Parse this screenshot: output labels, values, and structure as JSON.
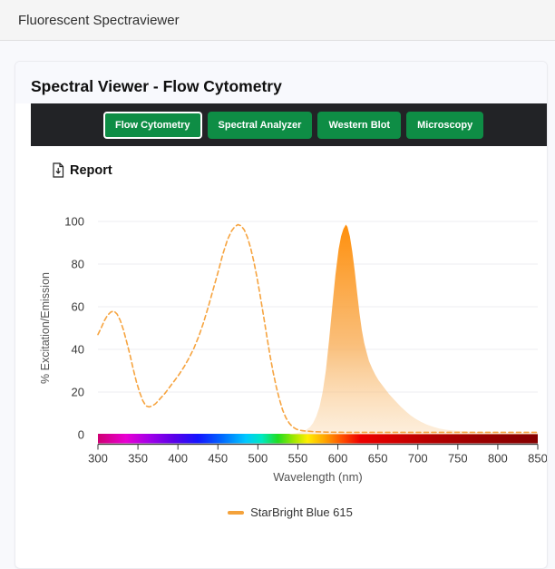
{
  "header": {
    "title": "Fluorescent Spectraviewer"
  },
  "card": {
    "title": "Spectral Viewer - Flow Cytometry"
  },
  "toolbar": {
    "bar_color": "#222326",
    "button_color": "#0e8d45",
    "buttons": [
      {
        "label": "Flow Cytometry",
        "active": true
      },
      {
        "label": "Spectral Analyzer",
        "active": false
      },
      {
        "label": "Western Blot",
        "active": false
      },
      {
        "label": "Microscopy",
        "active": false
      }
    ]
  },
  "report": {
    "label": "Report",
    "icon": "file-download-icon"
  },
  "chart_data": {
    "type": "area",
    "title": "",
    "xlabel": "Wavelength (nm)",
    "ylabel": "% Excitation/Emission",
    "xlim": [
      300,
      850
    ],
    "ylim": [
      0,
      100
    ],
    "x_ticks": [
      300,
      350,
      400,
      450,
      500,
      550,
      600,
      650,
      700,
      750,
      800,
      850
    ],
    "y_ticks": [
      0,
      20,
      40,
      60,
      80,
      100
    ],
    "grid": "horizontal",
    "legend_position": "bottom-center",
    "legend": [
      {
        "label": "StarBright Blue 615",
        "color": "#f4a23b"
      }
    ],
    "colors": {
      "excitation_line": "#f6a440",
      "grid": "#ededf0",
      "axis": "#3a3a3a",
      "tick_text": "#3a3a3a",
      "axis_title_text": "#555555"
    },
    "emission_gradient": [
      {
        "offset": 0,
        "color": "#ff8a00",
        "opacity": 0.97
      },
      {
        "offset": 0.55,
        "color": "#f8ae58",
        "opacity": 0.8
      },
      {
        "offset": 1,
        "color": "#fbe0bd",
        "opacity": 0.42
      }
    ],
    "spectrum_bar": {
      "description": "visible-spectrum color strip along the 0% baseline, 300-850 nm",
      "stops": [
        {
          "nm": 300,
          "color": "#cf0072"
        },
        {
          "nm": 335,
          "color": "#e800d2"
        },
        {
          "nm": 365,
          "color": "#a000e8"
        },
        {
          "nm": 395,
          "color": "#5a00e8"
        },
        {
          "nm": 425,
          "color": "#1414ff"
        },
        {
          "nm": 455,
          "color": "#0068ff"
        },
        {
          "nm": 485,
          "color": "#00c8ff"
        },
        {
          "nm": 505,
          "color": "#00e8c0"
        },
        {
          "nm": 525,
          "color": "#22dd22"
        },
        {
          "nm": 545,
          "color": "#a0e800"
        },
        {
          "nm": 562,
          "color": "#ffee00"
        },
        {
          "nm": 585,
          "color": "#ffa000"
        },
        {
          "nm": 605,
          "color": "#ff5000"
        },
        {
          "nm": 628,
          "color": "#ee0000"
        },
        {
          "nm": 670,
          "color": "#d40000"
        },
        {
          "nm": 720,
          "color": "#b40000"
        },
        {
          "nm": 780,
          "color": "#9a0000"
        },
        {
          "nm": 850,
          "color": "#860000"
        }
      ]
    },
    "series": [
      {
        "name": "StarBright Blue 615 excitation",
        "type": "line",
        "style": "dashed",
        "points": [
          [
            300,
            47
          ],
          [
            304,
            50
          ],
          [
            308,
            53.5
          ],
          [
            312,
            56
          ],
          [
            316,
            57.5
          ],
          [
            320,
            58
          ],
          [
            324,
            56.5
          ],
          [
            328,
            53.5
          ],
          [
            332,
            49
          ],
          [
            336,
            43.5
          ],
          [
            340,
            37.5
          ],
          [
            344,
            31
          ],
          [
            348,
            25
          ],
          [
            352,
            20
          ],
          [
            356,
            16
          ],
          [
            360,
            13.5
          ],
          [
            364,
            13
          ],
          [
            368,
            13.5
          ],
          [
            372,
            14.5
          ],
          [
            378,
            17
          ],
          [
            384,
            19.5
          ],
          [
            390,
            22.5
          ],
          [
            396,
            25.5
          ],
          [
            402,
            28.5
          ],
          [
            408,
            32
          ],
          [
            414,
            36
          ],
          [
            420,
            40.5
          ],
          [
            426,
            46
          ],
          [
            432,
            52.5
          ],
          [
            438,
            60
          ],
          [
            444,
            68
          ],
          [
            450,
            76
          ],
          [
            456,
            84.5
          ],
          [
            462,
            91.5
          ],
          [
            467,
            95.5
          ],
          [
            471,
            97.5
          ],
          [
            475,
            98.5
          ],
          [
            479,
            98
          ],
          [
            483,
            96
          ],
          [
            487,
            92.5
          ],
          [
            491,
            87.5
          ],
          [
            495,
            81
          ],
          [
            499,
            73.5
          ],
          [
            503,
            65
          ],
          [
            507,
            56
          ],
          [
            511,
            46.5
          ],
          [
            515,
            37.5
          ],
          [
            519,
            29.5
          ],
          [
            523,
            22.5
          ],
          [
            527,
            16.5
          ],
          [
            531,
            11.5
          ],
          [
            535,
            8
          ],
          [
            539,
            5.5
          ],
          [
            543,
            3.8
          ],
          [
            548,
            2.6
          ],
          [
            553,
            2
          ],
          [
            560,
            1.7
          ],
          [
            570,
            1.4
          ],
          [
            585,
            1.2
          ],
          [
            610,
            1.1
          ],
          [
            650,
            1.1
          ],
          [
            700,
            1.1
          ],
          [
            760,
            1.1
          ],
          [
            850,
            1.1
          ]
        ]
      },
      {
        "name": "StarBright Blue 615 emission",
        "type": "area",
        "style": "gradient-fill",
        "points": [
          [
            540,
            0.3
          ],
          [
            548,
            0.7
          ],
          [
            554,
            1.3
          ],
          [
            560,
            2.2
          ],
          [
            565,
            3.5
          ],
          [
            569,
            5.5
          ],
          [
            573,
            8.5
          ],
          [
            577,
            13
          ],
          [
            581,
            20
          ],
          [
            585,
            30
          ],
          [
            589,
            44
          ],
          [
            593,
            60
          ],
          [
            597,
            75
          ],
          [
            601,
            87
          ],
          [
            604,
            93
          ],
          [
            607,
            96.5
          ],
          [
            610,
            98.5
          ],
          [
            612,
            97.5
          ],
          [
            615,
            93
          ],
          [
            618,
            86
          ],
          [
            621,
            77
          ],
          [
            624,
            67
          ],
          [
            627,
            57
          ],
          [
            630,
            49
          ],
          [
            633,
            43
          ],
          [
            636,
            38.5
          ],
          [
            639,
            34.5
          ],
          [
            643,
            31
          ],
          [
            647,
            28
          ],
          [
            651,
            25.5
          ],
          [
            655,
            23.5
          ],
          [
            659,
            21.5
          ],
          [
            664,
            19
          ],
          [
            669,
            17
          ],
          [
            674,
            15
          ],
          [
            679,
            13
          ],
          [
            685,
            11
          ],
          [
            691,
            9
          ],
          [
            697,
            7.5
          ],
          [
            704,
            6
          ],
          [
            711,
            4.8
          ],
          [
            719,
            3.7
          ],
          [
            727,
            2.9
          ],
          [
            736,
            2.3
          ],
          [
            746,
            1.9
          ],
          [
            757,
            1.6
          ],
          [
            770,
            1.4
          ],
          [
            785,
            1.2
          ],
          [
            805,
            1
          ],
          [
            825,
            0.85
          ],
          [
            850,
            0.75
          ]
        ]
      }
    ]
  }
}
